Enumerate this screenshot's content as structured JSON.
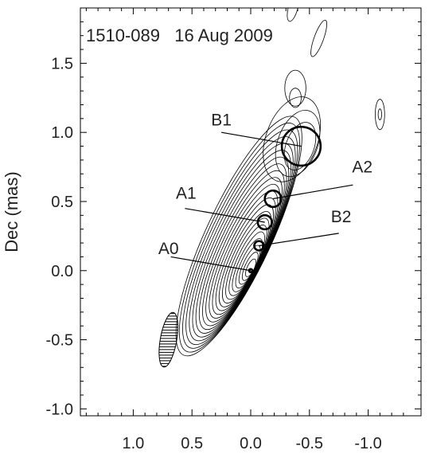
{
  "chart_data": {
    "type": "contour",
    "annotation": "1510-089   16 Aug 2009",
    "ylabel": "Dec (mas)",
    "xlabel": "",
    "x_axis_reversed": true,
    "xlim": [
      1.45,
      -1.45
    ],
    "ylim": [
      -1.05,
      1.9
    ],
    "x_ticks": [
      "1.0",
      "0.5",
      "0.0",
      "-0.5",
      "-1.0"
    ],
    "x_tick_values": [
      1.0,
      0.5,
      0.0,
      -0.5,
      -1.0
    ],
    "y_ticks": [
      "1.5",
      "1.0",
      "0.5",
      "0.0",
      "-0.5",
      "-1.0"
    ],
    "y_tick_values": [
      1.5,
      1.0,
      0.5,
      0.0,
      -0.5,
      -1.0
    ],
    "components": [
      {
        "name": "A0",
        "x": 0.0,
        "y": 0.0,
        "size": 0.02,
        "label_at": [
          0.7,
          0.12
        ],
        "leader_from": [
          0.68,
          0.1
        ]
      },
      {
        "name": "A1",
        "x": -0.12,
        "y": 0.35,
        "size": 0.12,
        "label_at": [
          0.55,
          0.52
        ],
        "leader_from": [
          0.56,
          0.45
        ]
      },
      {
        "name": "B2",
        "x": -0.07,
        "y": 0.18,
        "size": 0.08,
        "label_at": [
          -0.77,
          0.35
        ],
        "leader_from": [
          -0.75,
          0.27
        ]
      },
      {
        "name": "A2",
        "x": -0.19,
        "y": 0.52,
        "size": 0.14,
        "label_at": [
          -0.95,
          0.71
        ],
        "leader_from": [
          -0.87,
          0.62
        ]
      },
      {
        "name": "B1",
        "x": -0.43,
        "y": 0.9,
        "size": 0.33,
        "label_at": [
          0.25,
          1.05
        ],
        "leader_from": [
          0.25,
          1.0
        ]
      }
    ],
    "beam": {
      "x": 0.7,
      "y": -0.5,
      "major": 0.4,
      "minor": 0.14,
      "pa_deg": -10,
      "hatched": true
    },
    "contour_levels": 22,
    "grid": false
  }
}
